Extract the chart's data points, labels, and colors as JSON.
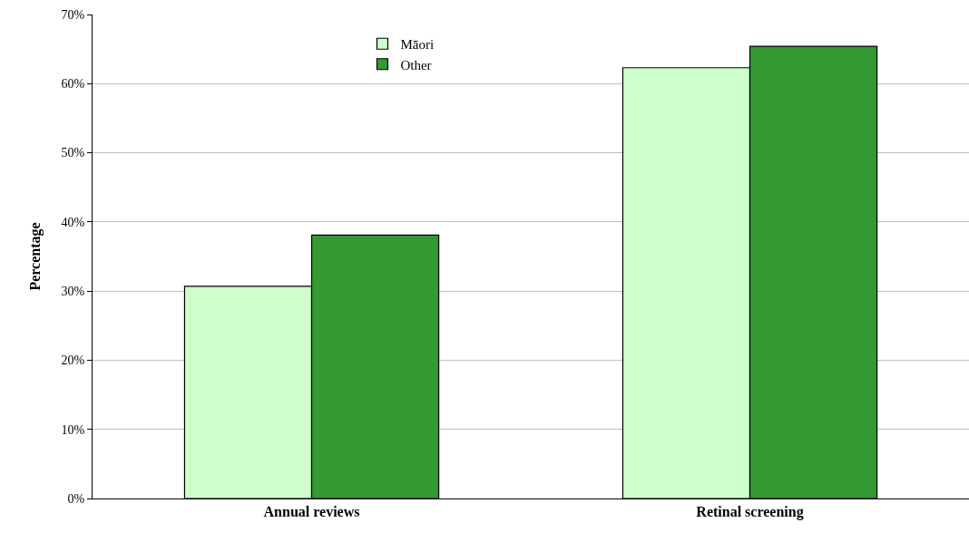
{
  "chart_data": {
    "type": "bar",
    "ylabel": "Percentage",
    "categories": [
      "Annual reviews",
      "Retinal screening"
    ],
    "series": [
      {
        "name": "Māori",
        "color": "#ccffcc",
        "values": [
          30.7,
          62.3
        ]
      },
      {
        "name": "Other",
        "color": "#339933",
        "values": [
          38.1,
          65.4
        ]
      }
    ],
    "ylim": [
      0,
      70
    ],
    "yticks": [
      {
        "value": 0,
        "label": "0%"
      },
      {
        "value": 10,
        "label": "10%"
      },
      {
        "value": 20,
        "label": "20%"
      },
      {
        "value": 30,
        "label": "30%"
      },
      {
        "value": 40,
        "label": "40%"
      },
      {
        "value": 50,
        "label": "50%"
      },
      {
        "value": 60,
        "label": "60%"
      },
      {
        "value": 70,
        "label": "70%"
      }
    ],
    "grid": "y",
    "legend": "top"
  }
}
